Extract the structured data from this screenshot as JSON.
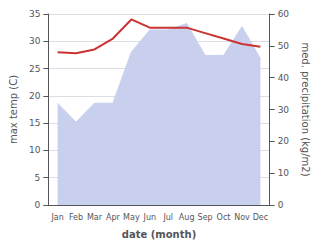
{
  "chart_data": {
    "type": "line",
    "categories": [
      "Jan",
      "Feb",
      "Mar",
      "Apr",
      "May",
      "Jun",
      "Jul",
      "Aug",
      "Sep",
      "Oct",
      "Nov",
      "Dec"
    ],
    "series": [
      {
        "type": "area",
        "axis": "y2",
        "color": "#c8d0ee",
        "values": [
          32,
          26,
          32,
          32,
          48,
          55,
          55,
          57,
          47,
          47,
          56,
          46
        ]
      },
      {
        "type": "line",
        "axis": "y",
        "color": "#cc3333",
        "values": [
          28.0,
          27.8,
          28.5,
          30.5,
          34.0,
          32.5,
          32.5,
          32.5,
          31.5,
          30.5,
          29.5,
          29.0
        ]
      }
    ],
    "xlabel": "date (month)",
    "ylabel": "max temp (C)",
    "y2label": "med. precipitation (kg/m2)",
    "ylim": [
      0,
      35
    ],
    "yticks": [
      0,
      5,
      10,
      15,
      20,
      25,
      30,
      35
    ],
    "y2lim": [
      0,
      60
    ],
    "y2ticks": [
      0,
      10,
      20,
      30,
      40,
      50,
      60
    ],
    "grid": true
  }
}
